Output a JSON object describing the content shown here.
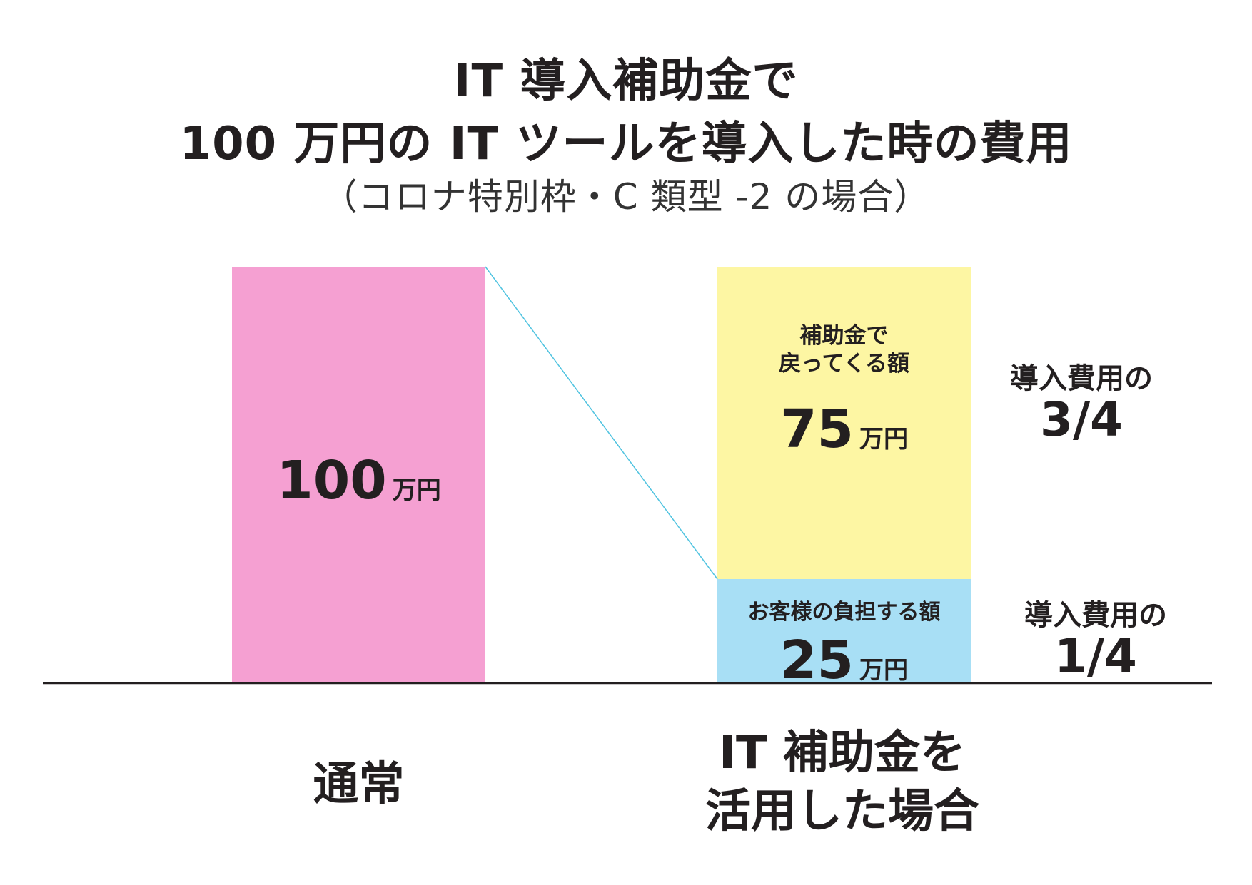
{
  "title": {
    "line1": "IT 導入補助金で",
    "line2": "100 万円の IT ツールを導入した時の費用",
    "line3": "（コロナ特別枠・C 類型 -2 の場合）"
  },
  "chart_data": {
    "type": "bar",
    "stacked": true,
    "unit": "万円",
    "categories": [
      "通常",
      "IT 補助金を\n活用した場合"
    ],
    "category_lines": [
      [
        "通常"
      ],
      [
        "IT 補助金を",
        "活用した場合"
      ]
    ],
    "ylim": [
      0,
      100
    ],
    "grid": false,
    "bars": [
      {
        "category": "通常",
        "segments": [
          {
            "value": 100,
            "value_label": "100",
            "unit": "万円",
            "color": "#f5a0d2"
          }
        ]
      },
      {
        "category": "IT 補助金を活用した場合",
        "segments": [
          {
            "label": "お客様の負担する額",
            "value": 25,
            "value_label": "25",
            "unit": "万円",
            "color": "#a8dff5",
            "fraction_label": "導入費用の",
            "fraction": "1/4"
          },
          {
            "label_lines": [
              "補助金で",
              "戻ってくる額"
            ],
            "value": 75,
            "value_label": "75",
            "unit": "万円",
            "color": "#fdf6a3",
            "fraction_label": "導入費用の",
            "fraction": "3/4"
          }
        ]
      }
    ],
    "connector_color": "#4fc3e0",
    "baseline_color": "#231f20"
  }
}
